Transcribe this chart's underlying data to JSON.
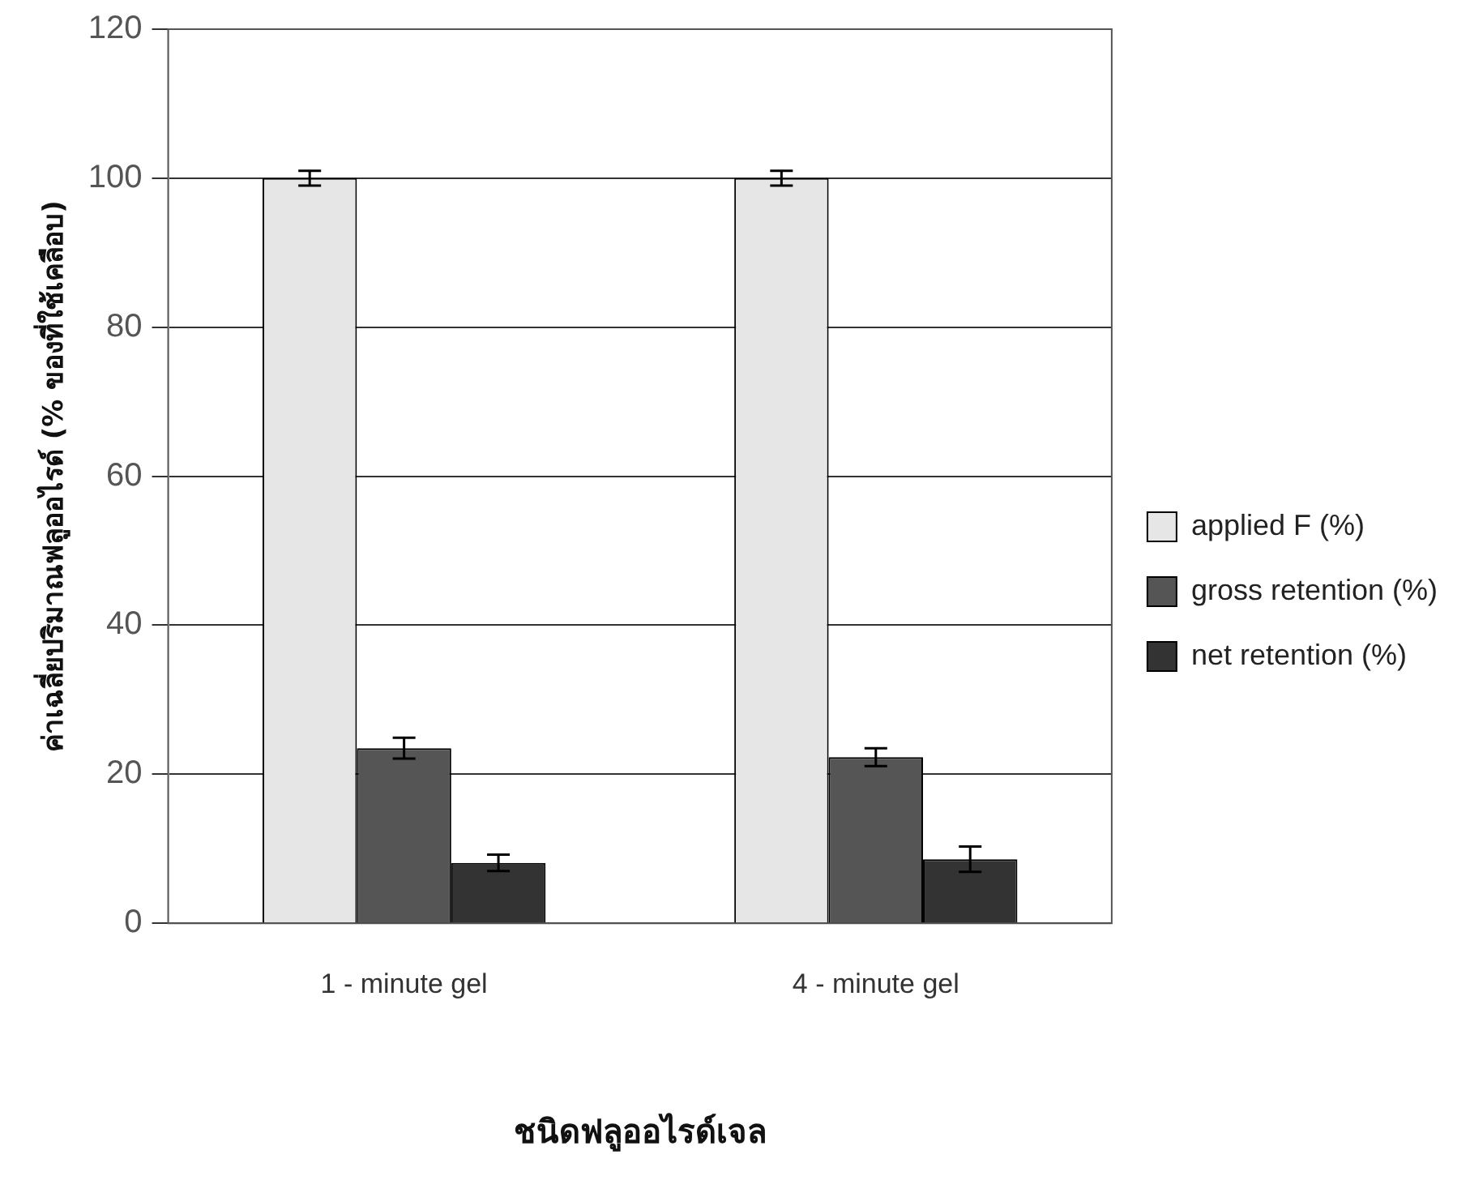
{
  "chart_data": {
    "type": "bar",
    "xlabel": "ชนิดฟลูออไรด์เจล",
    "ylabel": "ค่าเฉลี่ยปริมาณฟลูออไรด์ (% ของที่ใช้เคลือบ)",
    "categories": [
      "1 - minute gel",
      "4 - minute gel"
    ],
    "series": [
      {
        "name": "applied F (%)",
        "color": "#e6e6e6",
        "values": [
          100,
          100
        ],
        "errors": [
          1,
          1
        ]
      },
      {
        "name": "gross retention (%)",
        "color": "#555555",
        "values": [
          23.5,
          22.3
        ],
        "errors": [
          1.4,
          1.2
        ]
      },
      {
        "name": "net retention (%)",
        "color": "#333333",
        "values": [
          8.1,
          8.6
        ],
        "errors": [
          1.1,
          1.7
        ]
      }
    ],
    "ylim": [
      0,
      120
    ],
    "yticks": [
      0,
      20,
      40,
      60,
      80,
      100,
      120
    ],
    "grid": "y",
    "legend": "right"
  }
}
